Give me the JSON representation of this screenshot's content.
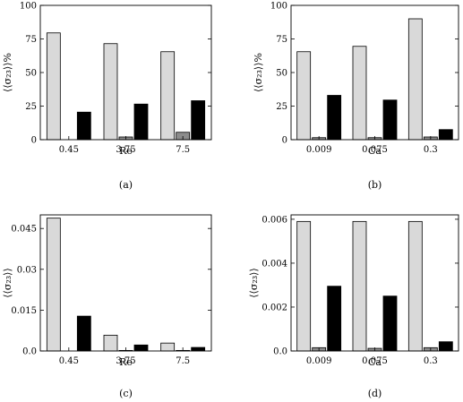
{
  "chart_data": [
    {
      "type": "bar",
      "panel_id": "(a)",
      "categories": [
        "0.45",
        "3.75",
        "7.5"
      ],
      "xlabel": "Re",
      "ylabel": "⟨⟨σ₂₃⟩⟩%",
      "ylim": [
        0,
        100
      ],
      "yticks": [
        0,
        25,
        50,
        75,
        100
      ],
      "ytick_labels": [
        "0",
        "25",
        "50",
        "75",
        "100"
      ],
      "series": [
        {
          "values": [
            79.5,
            71.5,
            65.5
          ],
          "color": "#d9d9d9"
        },
        {
          "values": [
            0,
            2,
            5.5
          ],
          "color": "#8c8c8c"
        },
        {
          "values": [
            20.5,
            26.5,
            29
          ],
          "color": "#000000"
        }
      ]
    },
    {
      "type": "bar",
      "panel_id": "(b)",
      "categories": [
        "0.009",
        "0.075",
        "0.3"
      ],
      "xlabel": "Ca",
      "ylabel": "⟨⟨σ₂₃⟩⟩%",
      "ylim": [
        0,
        100
      ],
      "yticks": [
        0,
        25,
        50,
        75,
        100
      ],
      "ytick_labels": [
        "0",
        "25",
        "50",
        "75",
        "100"
      ],
      "series": [
        {
          "values": [
            65.5,
            69.5,
            90
          ],
          "color": "#d9d9d9"
        },
        {
          "values": [
            1.5,
            1.5,
            2
          ],
          "color": "#8c8c8c"
        },
        {
          "values": [
            33,
            29.5,
            7.5
          ],
          "color": "#000000"
        }
      ]
    },
    {
      "type": "bar",
      "panel_id": "(c)",
      "categories": [
        "0.45",
        "3.75",
        "7.5"
      ],
      "xlabel": "Re",
      "ylabel": "⟨⟨σ₂₃⟩⟩",
      "ylim": [
        0,
        0.05
      ],
      "yticks": [
        0,
        0.015,
        0.03,
        0.045
      ],
      "ytick_labels": [
        "0.0",
        "0.015",
        "0.03",
        "0.045"
      ],
      "series": [
        {
          "values": [
            0.0488,
            0.0058,
            0.0029
          ],
          "color": "#d9d9d9"
        },
        {
          "values": [
            0,
            0.0002,
            0.0002
          ],
          "color": "#8c8c8c"
        },
        {
          "values": [
            0.0128,
            0.0022,
            0.0013
          ],
          "color": "#000000"
        }
      ]
    },
    {
      "type": "bar",
      "panel_id": "(d)",
      "categories": [
        "0.009",
        "0.075",
        "0.3"
      ],
      "xlabel": "Ca",
      "ylabel": "⟨⟨σ₂₃⟩⟩",
      "ylim": [
        0,
        0.0062
      ],
      "yticks": [
        0,
        0.002,
        0.004,
        0.006
      ],
      "ytick_labels": [
        "0.0",
        "0.002",
        "0.004",
        "0.006"
      ],
      "series": [
        {
          "values": [
            0.0059,
            0.0059,
            0.0059
          ],
          "color": "#d9d9d9"
        },
        {
          "values": [
            0.00015,
            0.00012,
            0.00015
          ],
          "color": "#8c8c8c"
        },
        {
          "values": [
            0.00295,
            0.0025,
            0.00042
          ],
          "color": "#000000"
        }
      ]
    }
  ]
}
